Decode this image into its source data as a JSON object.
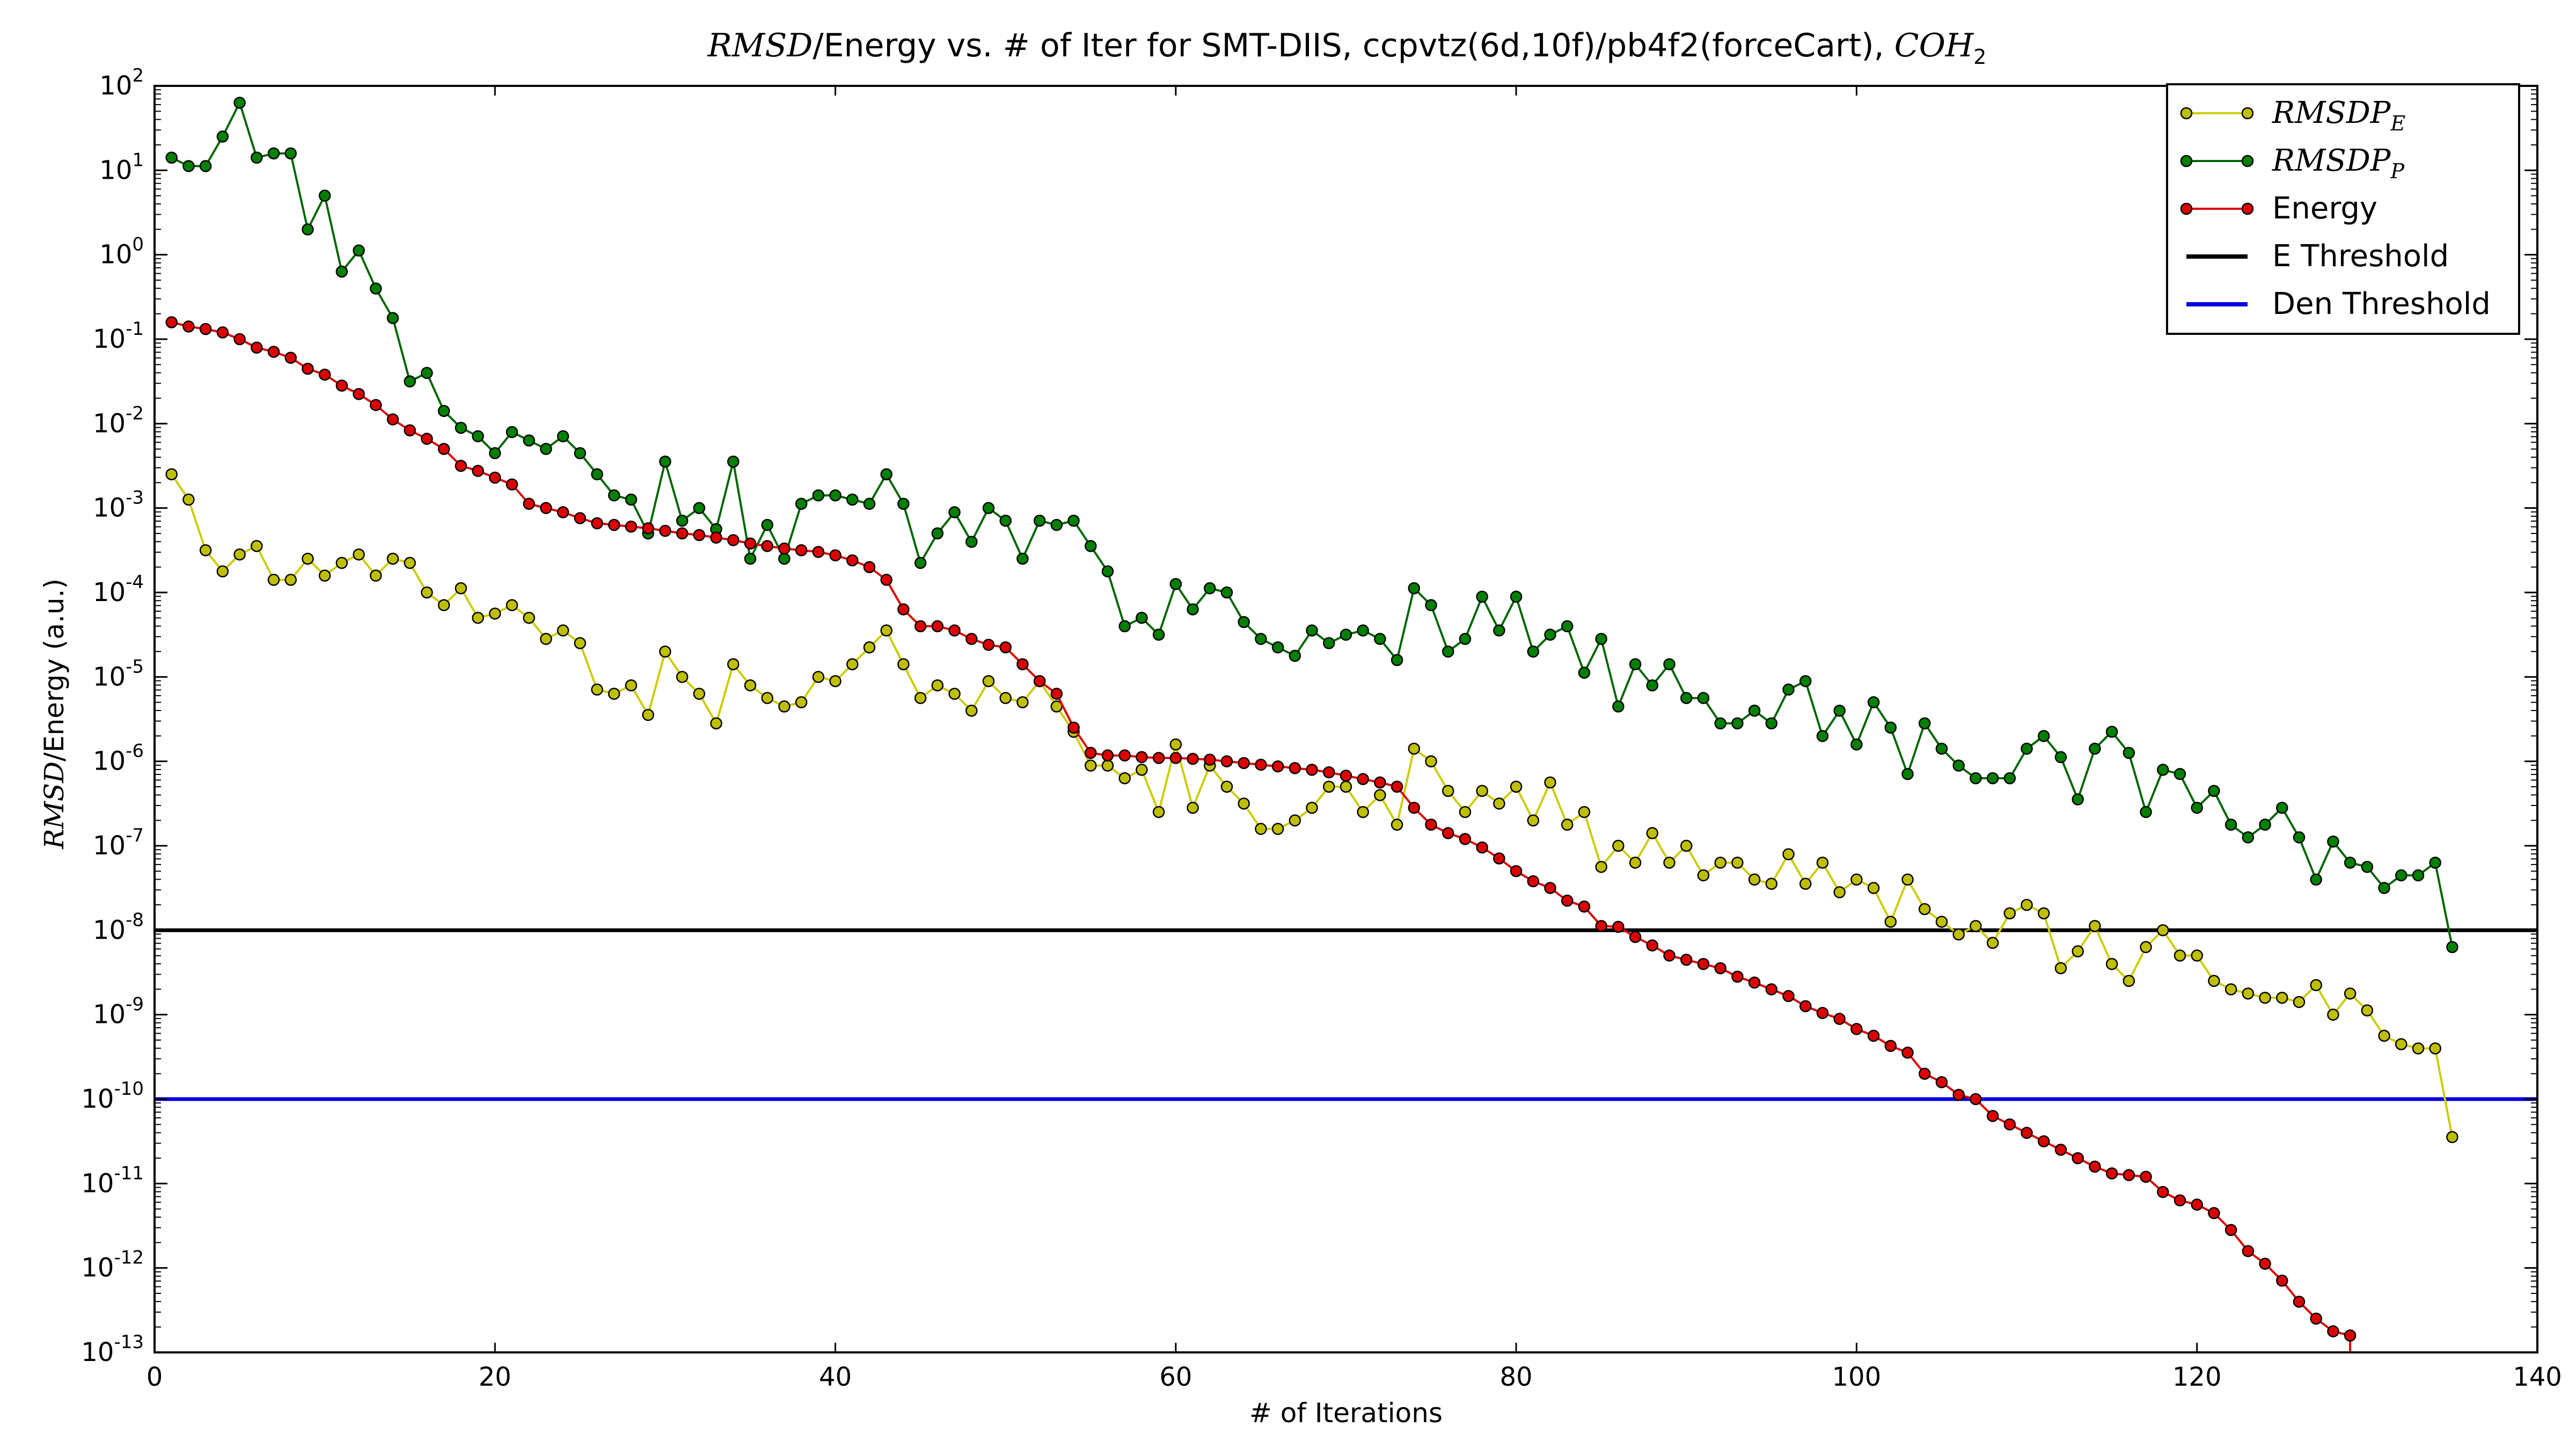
{
  "chart_data": {
    "type": "line",
    "title": {
      "prefix": "RMSD",
      "text": "/Energy vs. # of Iter for SMT-DIIS, ccpvtz(6d,10f)/pb4f2(forceCart), ",
      "suffix": "COH",
      "suffix_sub": "2"
    },
    "xlabel": "# of Iterations",
    "ylabel": {
      "prefix": "RMSD",
      "text": "/Energy (a.u.)"
    },
    "xlim": [
      0,
      140
    ],
    "ylim": [
      1e-13,
      100
    ],
    "yscale": "log",
    "grid": false,
    "legend_position": "top-right",
    "x_ticks": [
      "0",
      "20",
      "40",
      "60",
      "80",
      "100",
      "120",
      "140"
    ],
    "y_ticks": [
      {
        "base": "10",
        "exp": "2"
      },
      {
        "base": "10",
        "exp": "1"
      },
      {
        "base": "10",
        "exp": "0"
      },
      {
        "base": "10",
        "exp": "-1"
      },
      {
        "base": "10",
        "exp": "-2"
      },
      {
        "base": "10",
        "exp": "-3"
      },
      {
        "base": "10",
        "exp": "-4"
      },
      {
        "base": "10",
        "exp": "-5"
      },
      {
        "base": "10",
        "exp": "-6"
      },
      {
        "base": "10",
        "exp": "-7"
      },
      {
        "base": "10",
        "exp": "-8"
      },
      {
        "base": "10",
        "exp": "-9"
      },
      {
        "base": "10",
        "exp": "-10"
      },
      {
        "base": "10",
        "exp": "-11"
      },
      {
        "base": "10",
        "exp": "-12"
      },
      {
        "base": "10",
        "exp": "-13"
      }
    ],
    "series": [
      {
        "label": "RMSDP",
        "label_sub": "E",
        "label_style": "math",
        "color": "#cccc00",
        "marker_fill": "#bfbf00",
        "marker": "circle",
        "x_start": 1,
        "y_log10": [
          -2.6,
          -2.9,
          -3.5,
          -3.75,
          -3.55,
          -3.45,
          -3.85,
          -3.85,
          -3.6,
          -3.8,
          -3.65,
          -3.55,
          -3.8,
          -3.6,
          -3.65,
          -4.0,
          -4.15,
          -3.95,
          -4.3,
          -4.25,
          -4.15,
          -4.3,
          -4.55,
          -4.45,
          -4.6,
          -5.15,
          -5.2,
          -5.1,
          -5.45,
          -4.7,
          -5.0,
          -5.2,
          -5.55,
          -4.85,
          -5.1,
          -5.25,
          -5.35,
          -5.3,
          -5.0,
          -5.05,
          -4.85,
          -4.65,
          -4.45,
          -4.85,
          -5.25,
          -5.1,
          -5.2,
          -5.4,
          -5.05,
          -5.25,
          -5.3,
          -5.05,
          -5.35,
          -5.65,
          -6.05,
          -6.05,
          -6.2,
          -6.1,
          -6.6,
          -5.8,
          -6.55,
          -6.05,
          -6.3,
          -6.5,
          -6.8,
          -6.8,
          -6.7,
          -6.55,
          -6.3,
          -6.3,
          -6.6,
          -6.4,
          -6.75,
          -5.85,
          -6.0,
          -6.35,
          -6.6,
          -6.35,
          -6.5,
          -6.3,
          -6.7,
          -6.25,
          -6.75,
          -6.6,
          -7.25,
          -7.0,
          -7.2,
          -6.85,
          -7.2,
          -7.0,
          -7.35,
          -7.2,
          -7.2,
          -7.4,
          -7.45,
          -7.1,
          -7.45,
          -7.2,
          -7.55,
          -7.4,
          -7.5,
          -7.9,
          -7.4,
          -7.75,
          -7.9,
          -8.05,
          -7.95,
          -8.15,
          -7.8,
          -7.7,
          -7.8,
          -8.45,
          -8.25,
          -7.95,
          -8.4,
          -8.6,
          -8.2,
          -8.0,
          -8.3,
          -8.3,
          -8.6,
          -8.7,
          -8.75,
          -8.8,
          -8.8,
          -8.85,
          -8.65,
          -9.0,
          -8.75,
          -8.95,
          -9.25,
          -9.35,
          -9.4,
          -9.4,
          -10.45
        ]
      },
      {
        "label": "RMSDP",
        "label_sub": "P",
        "label_style": "math",
        "color": "#006600",
        "marker_fill": "#008000",
        "marker": "circle",
        "x_start": 1,
        "y_log10": [
          1.15,
          1.05,
          1.05,
          1.4,
          1.8,
          1.15,
          1.2,
          1.2,
          0.3,
          0.7,
          -0.2,
          0.05,
          -0.4,
          -0.75,
          -1.5,
          -1.4,
          -1.85,
          -2.05,
          -2.15,
          -2.35,
          -2.1,
          -2.2,
          -2.3,
          -2.15,
          -2.35,
          -2.6,
          -2.85,
          -2.9,
          -3.3,
          -2.45,
          -3.15,
          -3.0,
          -3.25,
          -2.45,
          -3.6,
          -3.2,
          -3.6,
          -2.95,
          -2.85,
          -2.85,
          -2.9,
          -2.95,
          -2.6,
          -2.95,
          -3.65,
          -3.3,
          -3.05,
          -3.4,
          -3.0,
          -3.15,
          -3.6,
          -3.15,
          -3.2,
          -3.15,
          -3.45,
          -3.75,
          -4.4,
          -4.3,
          -4.5,
          -3.9,
          -4.2,
          -3.95,
          -4.0,
          -4.35,
          -4.55,
          -4.65,
          -4.75,
          -4.45,
          -4.6,
          -4.5,
          -4.45,
          -4.55,
          -4.8,
          -3.95,
          -4.15,
          -4.7,
          -4.55,
          -4.05,
          -4.45,
          -4.05,
          -4.7,
          -4.5,
          -4.4,
          -4.95,
          -4.55,
          -5.35,
          -4.85,
          -5.1,
          -4.85,
          -5.25,
          -5.25,
          -5.55,
          -5.55,
          -5.4,
          -5.55,
          -5.15,
          -5.05,
          -5.7,
          -5.4,
          -5.8,
          -5.3,
          -5.6,
          -6.15,
          -5.55,
          -5.85,
          -6.05,
          -6.2,
          -6.2,
          -6.2,
          -5.85,
          -5.7,
          -5.95,
          -6.45,
          -5.85,
          -5.65,
          -5.9,
          -6.6,
          -6.1,
          -6.15,
          -6.55,
          -6.35,
          -6.75,
          -6.9,
          -6.75,
          -6.55,
          -6.9,
          -7.4,
          -6.95,
          -7.2,
          -7.25,
          -7.5,
          -7.35,
          -7.35,
          -7.2,
          -8.2
        ]
      },
      {
        "label": "Energy",
        "label_style": "text",
        "color": "#dd0000",
        "marker_fill": "#dd0000",
        "marker": "circle",
        "x_start": 1,
        "y_log10": [
          -0.8,
          -0.85,
          -0.88,
          -0.92,
          -1.0,
          -1.1,
          -1.15,
          -1.22,
          -1.35,
          -1.42,
          -1.55,
          -1.65,
          -1.78,
          -1.95,
          -2.08,
          -2.18,
          -2.3,
          -2.5,
          -2.56,
          -2.64,
          -2.72,
          -2.95,
          -3.0,
          -3.05,
          -3.12,
          -3.18,
          -3.2,
          -3.22,
          -3.24,
          -3.27,
          -3.3,
          -3.32,
          -3.35,
          -3.38,
          -3.42,
          -3.45,
          -3.48,
          -3.5,
          -3.52,
          -3.56,
          -3.62,
          -3.7,
          -3.85,
          -4.2,
          -4.4,
          -4.4,
          -4.45,
          -4.55,
          -4.62,
          -4.65,
          -4.85,
          -5.05,
          -5.2,
          -5.6,
          -5.9,
          -5.93,
          -5.93,
          -5.95,
          -5.96,
          -5.96,
          -5.97,
          -5.98,
          -6.0,
          -6.02,
          -6.04,
          -6.06,
          -6.08,
          -6.1,
          -6.13,
          -6.17,
          -6.21,
          -6.25,
          -6.3,
          -6.55,
          -6.75,
          -6.85,
          -6.92,
          -7.02,
          -7.15,
          -7.3,
          -7.42,
          -7.5,
          -7.65,
          -7.72,
          -7.95,
          -7.96,
          -8.08,
          -8.18,
          -8.3,
          -8.35,
          -8.4,
          -8.45,
          -8.55,
          -8.62,
          -8.7,
          -8.78,
          -8.9,
          -8.98,
          -9.05,
          -9.17,
          -9.25,
          -9.37,
          -9.45,
          -9.7,
          -9.8,
          -9.95,
          -10.0,
          -10.2,
          -10.3,
          -10.4,
          -10.5,
          -10.6,
          -10.7,
          -10.8,
          -10.88,
          -10.9,
          -10.92,
          -11.1,
          -11.2,
          -11.25,
          -11.35,
          -11.55,
          -11.8,
          -11.95,
          -12.15,
          -12.4,
          -12.6,
          -12.75,
          -12.8
        ]
      },
      {
        "label": "E Threshold",
        "label_style": "text",
        "color": "#000000",
        "marker": "none",
        "y_const": 1e-08
      },
      {
        "label": "Den Threshold",
        "label_style": "text",
        "color": "#0000dd",
        "marker": "none",
        "y_const": 1e-10
      }
    ]
  }
}
